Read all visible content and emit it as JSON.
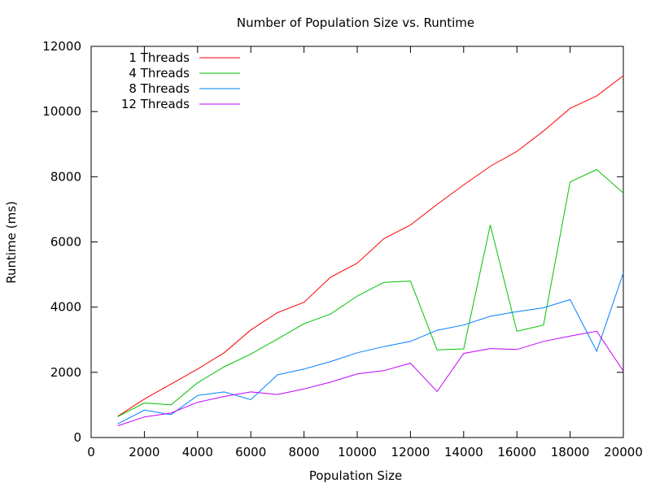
{
  "chart_data": {
    "type": "line",
    "title": "Number of Population Size vs. Runtime",
    "xlabel": "Population Size",
    "ylabel": "Runtime (ms)",
    "xlim": [
      0,
      20000
    ],
    "ylim": [
      0,
      12000
    ],
    "x_ticks": [
      0,
      2000,
      4000,
      6000,
      8000,
      10000,
      12000,
      14000,
      16000,
      18000,
      20000
    ],
    "y_ticks": [
      0,
      2000,
      4000,
      6000,
      8000,
      10000,
      12000
    ],
    "grid": false,
    "legend_position": "top-left",
    "x": [
      1000,
      2000,
      3000,
      4000,
      5000,
      6000,
      7000,
      8000,
      9000,
      10000,
      11000,
      12000,
      13000,
      14000,
      15000,
      16000,
      17000,
      18000,
      19000,
      20000
    ],
    "series": [
      {
        "name": "1 Threads",
        "color": "#ff0000",
        "values": [
          650,
          1180,
          1640,
          2100,
          2600,
          3300,
          3830,
          4150,
          4920,
          5350,
          6100,
          6520,
          7150,
          7750,
          8320,
          8780,
          9400,
          10100,
          10480,
          11100
        ]
      },
      {
        "name": "4 Threads",
        "color": "#00c000",
        "values": [
          640,
          1060,
          1000,
          1680,
          2170,
          2560,
          3020,
          3490,
          3790,
          4340,
          4760,
          4800,
          2690,
          2720,
          6520,
          3260,
          3450,
          7840,
          8220,
          7500
        ]
      },
      {
        "name": "8 Threads",
        "color": "#0080ff",
        "values": [
          420,
          840,
          700,
          1290,
          1400,
          1160,
          1920,
          2100,
          2330,
          2600,
          2790,
          2950,
          3290,
          3450,
          3720,
          3860,
          3980,
          4230,
          2650,
          5050
        ]
      },
      {
        "name": "12 Threads",
        "color": "#c000ff",
        "values": [
          360,
          630,
          750,
          1080,
          1260,
          1400,
          1320,
          1490,
          1700,
          1950,
          2050,
          2280,
          1410,
          2580,
          2730,
          2700,
          2950,
          3110,
          3260,
          2040
        ]
      }
    ]
  }
}
